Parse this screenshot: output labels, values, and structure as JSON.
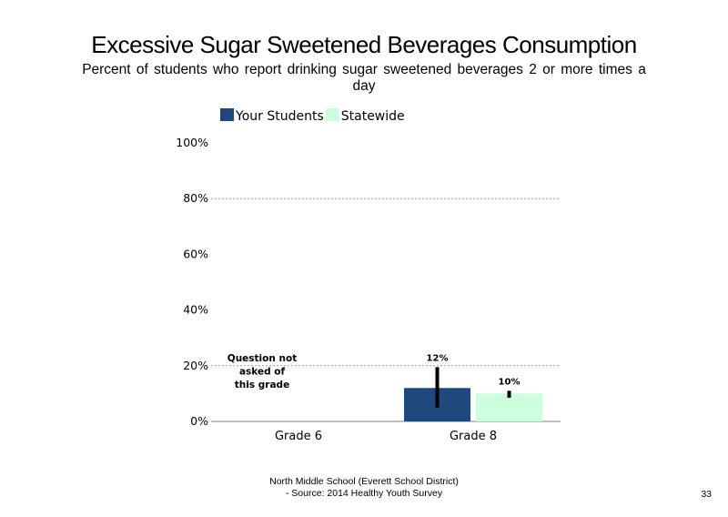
{
  "slide": {
    "title": "Excessive Sugar Sweetened Beverages Consumption",
    "subtitle": "Percent of students who report drinking sugar sweetened beverages 2 or more times a day",
    "footer_line1": "North Middle School (Everett School District)",
    "footer_line2": "- Source: 2014 Healthy Youth Survey",
    "page_number": "33"
  },
  "chart_data": {
    "type": "bar",
    "categories": [
      "Grade 6",
      "Grade 8"
    ],
    "series": [
      {
        "name": "Your Students",
        "color": "#1F497D",
        "values": [
          null,
          12
        ],
        "labels": [
          "",
          "12%"
        ],
        "error": [
          null,
          [
            5,
            19.5
          ]
        ]
      },
      {
        "name": "Statewide",
        "color": "#CCFFDD",
        "values": [
          null,
          10
        ],
        "labels": [
          "",
          "10%"
        ],
        "error": [
          null,
          [
            8.5,
            11
          ]
        ]
      }
    ],
    "ylim": [
      0,
      100
    ],
    "yticks": [
      0,
      20,
      40,
      60,
      80,
      100
    ],
    "ytick_labels": [
      "0%",
      "20%",
      "40%",
      "60%",
      "80%",
      "100%"
    ],
    "gridlines": [
      20,
      80
    ],
    "legend_position": "top-left",
    "annotations": [
      {
        "category": "Grade 6",
        "lines": [
          "Question not",
          "asked of",
          "this grade"
        ]
      }
    ],
    "xlabel": "",
    "ylabel": ""
  }
}
